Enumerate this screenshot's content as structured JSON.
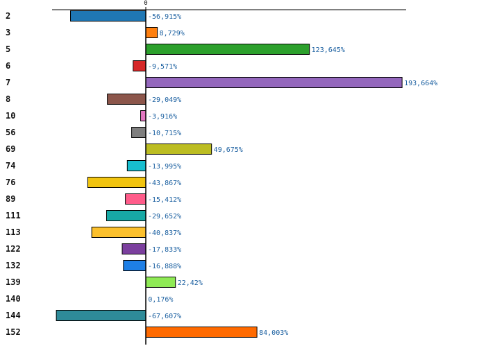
{
  "chart_data": {
    "type": "bar",
    "orientation": "horizontal",
    "categories": [
      "2",
      "3",
      "5",
      "6",
      "7",
      "8",
      "10",
      "56",
      "69",
      "74",
      "76",
      "89",
      "111",
      "113",
      "122",
      "132",
      "139",
      "140",
      "144",
      "152"
    ],
    "values": [
      -56.915,
      8.729,
      123.645,
      -9.571,
      193.664,
      -29.049,
      -3.916,
      -10.715,
      49.675,
      -13.995,
      -43.867,
      -15.412,
      -29.652,
      -40.837,
      -17.833,
      -16.888,
      22.42,
      0.176,
      -67.607,
      84.003
    ],
    "value_labels": [
      "-56,915%",
      "8,729%",
      "123,645%",
      "-9,571%",
      "193,664%",
      "-29,049%",
      "-3,916%",
      "-10,715%",
      "49,675%",
      "-13,995%",
      "-43,867%",
      "-15,412%",
      "-29,652%",
      "-40,837%",
      "-17,833%",
      "-16,888%",
      "22,42%",
      "0,176%",
      "-67,607%",
      "84,003%"
    ],
    "colors": [
      "#1f77b4",
      "#ff7f0e",
      "#2ca02c",
      "#d62728",
      "#9467bd",
      "#8c564b",
      "#e377c2",
      "#7f7f7f",
      "#bcbd22",
      "#17becf",
      "#f1c40f",
      "#ff5c8a",
      "#17a9a5",
      "#fbc02d",
      "#7b3f9e",
      "#1e7fe6",
      "#8fea55",
      "#ffffff",
      "#2e8b99",
      "#ff6a00"
    ],
    "axis": {
      "zero_label": "0",
      "xlim": [
        -70,
        197
      ]
    },
    "title": "",
    "xlabel": "",
    "ylabel": "",
    "grid": false,
    "legend": "none"
  }
}
